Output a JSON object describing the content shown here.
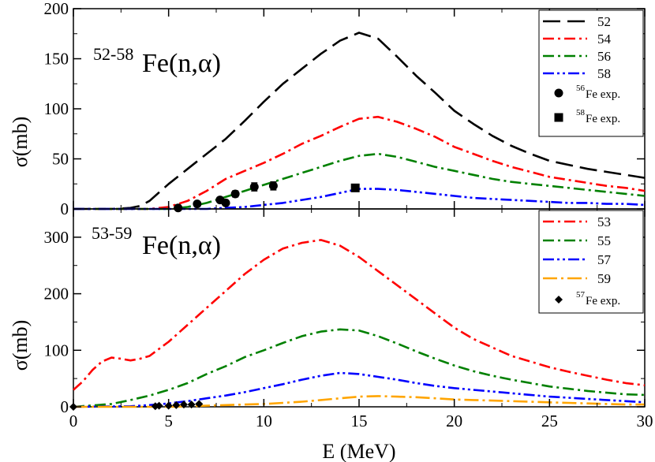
{
  "chart_data": [
    {
      "type": "line",
      "panel": "top",
      "title_superscript": "52-58",
      "title": "Fe(n,α)",
      "xlabel": "E (MeV)",
      "ylabel": "σ(mb)",
      "xlim": [
        0,
        30
      ],
      "ylim": [
        0,
        200
      ],
      "x_ticks": [
        0,
        5,
        10,
        15,
        20,
        25,
        30
      ],
      "y_ticks": [
        0,
        50,
        100,
        150,
        200
      ],
      "legend_position": "top-right",
      "series": [
        {
          "name": "52",
          "color": "#000000",
          "dash": "long-dash",
          "x": [
            0,
            2,
            3,
            3.5,
            4,
            5,
            6,
            7,
            8,
            9,
            10,
            11,
            12,
            13,
            14,
            15,
            16,
            17,
            18,
            19,
            20,
            21,
            22,
            23,
            24,
            25,
            26,
            27,
            28,
            29,
            30
          ],
          "y": [
            0,
            0,
            1,
            3,
            8,
            25,
            40,
            55,
            70,
            88,
            107,
            125,
            140,
            155,
            168,
            176,
            170,
            152,
            133,
            116,
            98,
            85,
            73,
            63,
            55,
            48,
            44,
            40,
            37,
            34,
            31
          ]
        },
        {
          "name": "54",
          "color": "#ff0000",
          "dash": "dash-dot",
          "x": [
            0,
            4,
            5,
            6,
            7,
            8,
            9,
            10,
            11,
            12,
            13,
            14,
            15,
            16,
            17,
            18,
            19,
            20,
            21,
            22,
            23,
            24,
            25,
            26,
            27,
            28,
            29,
            30
          ],
          "y": [
            0,
            0,
            2,
            8,
            18,
            30,
            38,
            46,
            55,
            65,
            73,
            82,
            90,
            92,
            87,
            80,
            72,
            62,
            55,
            48,
            42,
            37,
            32,
            29,
            26,
            23,
            21,
            18
          ]
        },
        {
          "name": "56",
          "color": "#008000",
          "dash": "dash-dot",
          "x": [
            0,
            5,
            6,
            7,
            8,
            9,
            10,
            11,
            12,
            13,
            14,
            15,
            16,
            17,
            18,
            19,
            20,
            21,
            22,
            23,
            24,
            25,
            26,
            27,
            28,
            29,
            30
          ],
          "y": [
            0,
            0,
            2,
            6,
            12,
            18,
            24,
            30,
            36,
            42,
            48,
            53,
            55,
            52,
            47,
            42,
            38,
            34,
            30,
            27,
            25,
            23,
            21,
            19,
            17,
            15,
            13
          ]
        },
        {
          "name": "58",
          "color": "#0000ff",
          "dash": "dash-dot-dot",
          "x": [
            0,
            7,
            8,
            9,
            10,
            11,
            12,
            13,
            14,
            15,
            16,
            17,
            18,
            19,
            20,
            21,
            22,
            23,
            24,
            25,
            26,
            27,
            28,
            29,
            30
          ],
          "y": [
            0,
            0,
            1,
            2,
            4,
            6,
            9,
            12,
            16,
            20,
            20,
            19,
            17,
            15,
            13,
            11,
            10,
            9,
            8,
            7,
            6,
            6,
            5,
            5,
            4
          ]
        }
      ],
      "points": [
        {
          "name": "56Fe exp.",
          "legend_sup": "56",
          "legend_text": "Fe exp.",
          "marker": "circle",
          "x": [
            5.5,
            6.5,
            7.7,
            8.0,
            8.5,
            9.5,
            10.5
          ],
          "y": [
            1,
            5,
            9,
            6,
            15,
            22,
            23
          ],
          "err": [
            1,
            2,
            2,
            2,
            3,
            4,
            4
          ]
        },
        {
          "name": "58Fe exp.",
          "legend_sup": "58",
          "legend_text": "Fe exp.",
          "marker": "square",
          "x": [
            14.8
          ],
          "y": [
            21
          ],
          "err": [
            2
          ]
        }
      ]
    },
    {
      "type": "line",
      "panel": "bottom",
      "title_superscript": "53-59",
      "title": "Fe(n,α)",
      "xlabel": "E (MeV)",
      "ylabel": "σ(mb)",
      "xlim": [
        0,
        30
      ],
      "ylim": [
        0,
        350
      ],
      "x_ticks": [
        0,
        5,
        10,
        15,
        20,
        25,
        30
      ],
      "y_ticks": [
        0,
        100,
        200,
        300
      ],
      "legend_position": "top-right",
      "series": [
        {
          "name": "53",
          "color": "#ff0000",
          "dash": "dash-dot",
          "x": [
            0,
            0.5,
            1,
            1.5,
            2,
            2.5,
            3,
            3.5,
            4,
            5,
            6,
            7,
            8,
            9,
            10,
            11,
            12,
            13,
            14,
            15,
            16,
            17,
            18,
            19,
            20,
            21,
            22,
            23,
            24,
            25,
            26,
            27,
            28,
            29,
            30
          ],
          "y": [
            30,
            45,
            65,
            80,
            87,
            85,
            82,
            85,
            90,
            115,
            145,
            175,
            205,
            235,
            260,
            280,
            290,
            295,
            285,
            265,
            240,
            215,
            190,
            165,
            140,
            120,
            105,
            90,
            80,
            70,
            62,
            55,
            48,
            42,
            38
          ]
        },
        {
          "name": "55",
          "color": "#008000",
          "dash": "dash-dot",
          "x": [
            0,
            2,
            3,
            4,
            5,
            6,
            7,
            8,
            9,
            10,
            11,
            12,
            13,
            14,
            15,
            16,
            17,
            18,
            19,
            20,
            21,
            22,
            23,
            24,
            25,
            26,
            27,
            28,
            29,
            30
          ],
          "y": [
            0,
            5,
            12,
            20,
            30,
            42,
            58,
            72,
            88,
            100,
            113,
            125,
            133,
            137,
            135,
            125,
            112,
            98,
            85,
            73,
            63,
            55,
            48,
            42,
            36,
            32,
            28,
            25,
            22,
            21
          ]
        },
        {
          "name": "57",
          "color": "#0000ff",
          "dash": "dash-dot-dot",
          "x": [
            0,
            3,
            4,
            5,
            6,
            7,
            8,
            9,
            10,
            11,
            12,
            13,
            14,
            15,
            16,
            17,
            18,
            19,
            20,
            21,
            22,
            23,
            24,
            25,
            26,
            27,
            28,
            29,
            30
          ],
          "y": [
            0,
            1,
            3,
            6,
            10,
            15,
            20,
            26,
            33,
            40,
            48,
            55,
            60,
            58,
            53,
            48,
            42,
            37,
            33,
            30,
            27,
            24,
            21,
            18,
            16,
            14,
            12,
            10,
            8
          ]
        },
        {
          "name": "59",
          "color": "#ffa500",
          "dash": "long-dash-dot",
          "x": [
            0,
            5,
            6,
            7,
            8,
            9,
            10,
            11,
            12,
            13,
            14,
            15,
            16,
            17,
            18,
            19,
            20,
            21,
            22,
            23,
            24,
            25,
            26,
            27,
            28,
            29,
            30
          ],
          "y": [
            0,
            0,
            1,
            2,
            3,
            4,
            5,
            7,
            9,
            12,
            15,
            18,
            19,
            18,
            17,
            15,
            13,
            12,
            11,
            10,
            9,
            8,
            7,
            6,
            5,
            4,
            4
          ]
        }
      ],
      "points": [
        {
          "name": "57Fe exp.",
          "legend_sup": "57",
          "legend_text": "Fe exp.",
          "marker": "diamond",
          "x": [
            0,
            4.3,
            4.5,
            5.0,
            5.4,
            5.8,
            6.2,
            6.6
          ],
          "y": [
            0,
            1,
            2,
            2,
            3,
            4,
            4,
            5
          ]
        }
      ]
    }
  ]
}
